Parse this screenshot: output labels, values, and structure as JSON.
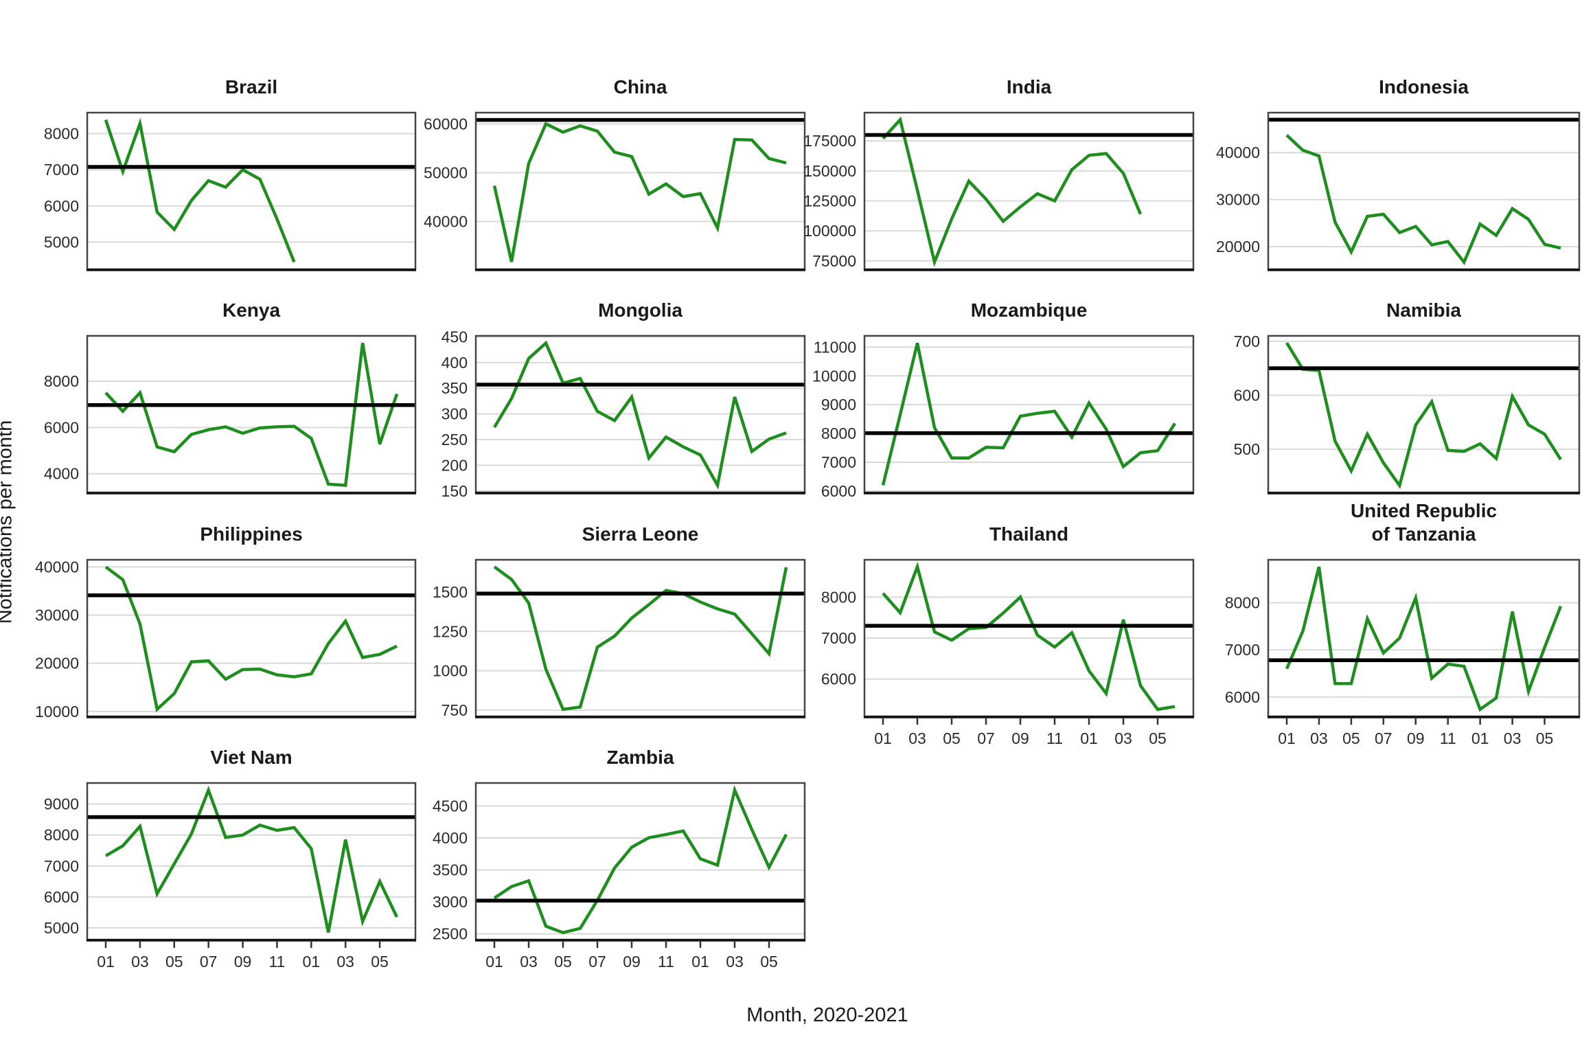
{
  "figure": {
    "ylabel": "Notifications per month",
    "xlabel": "Month, 2020-2021",
    "line_color": "#1e8e1e",
    "ref_line_color": "#000000",
    "gridline_color": "#d9d9d9",
    "border_color": "#454545",
    "axis_line_color": "#111111",
    "tick_text_color": "#2b2b2b"
  },
  "chart_data": {
    "type": "line",
    "x_months": [
      "01",
      "02",
      "03",
      "04",
      "05",
      "06",
      "07",
      "08",
      "09",
      "10",
      "11",
      "12",
      "01",
      "02",
      "03",
      "04",
      "05",
      "06"
    ],
    "x_tick_month_indices": [
      0,
      2,
      4,
      6,
      8,
      10,
      12,
      14,
      16
    ],
    "x_tick_labels": [
      "01",
      "03",
      "05",
      "07",
      "09",
      "11",
      "01",
      "03",
      "05"
    ],
    "note": "Green line = monthly TB notifications; black horizontal line = reference (pre-pandemic average) level",
    "panels": [
      {
        "title": "Brazil",
        "row": 0,
        "col": 0,
        "show_x_axis": false,
        "values": [
          8380,
          6950,
          8280,
          5830,
          5350,
          6150,
          6700,
          6520,
          7000,
          6740,
          5640,
          4450
        ],
        "ref": 7080,
        "yticks": [
          5000,
          6000,
          7000,
          8000
        ],
        "ymin": 4250,
        "ymax": 8580
      },
      {
        "title": "China",
        "row": 0,
        "col": 1,
        "show_x_axis": false,
        "values": [
          47300,
          31700,
          51900,
          60000,
          58300,
          59600,
          58500,
          54200,
          53300,
          45600,
          47700,
          45100,
          45700,
          38650,
          56800,
          56700,
          52900,
          52000
        ],
        "ref": 60800,
        "yticks": [
          40000,
          50000,
          60000
        ],
        "ymin": 30200,
        "ymax": 62300
      },
      {
        "title": "India",
        "row": 0,
        "col": 2,
        "show_x_axis": false,
        "values": [
          177000,
          192700,
          134000,
          74000,
          110000,
          141500,
          126500,
          108000,
          120000,
          131000,
          125000,
          151000,
          163000,
          164500,
          148000,
          114000
        ],
        "ref": 180000,
        "yticks": [
          75000,
          100000,
          125000,
          150000,
          175000
        ],
        "ymin": 68000,
        "ymax": 198600
      },
      {
        "title": "Indonesia",
        "row": 0,
        "col": 3,
        "show_x_axis": false,
        "values": [
          43700,
          40500,
          39300,
          25200,
          18900,
          26450,
          26900,
          23000,
          24300,
          20400,
          21100,
          16700,
          24800,
          22400,
          28100,
          25800,
          20500,
          19700
        ],
        "ref": 47000,
        "yticks": [
          20000,
          30000,
          40000
        ],
        "ymin": 15200,
        "ymax": 48500
      },
      {
        "title": "Kenya",
        "row": 1,
        "col": 0,
        "show_x_axis": false,
        "values": [
          7500,
          6700,
          7500,
          5160,
          4950,
          5700,
          5900,
          6030,
          5750,
          5980,
          6030,
          6050,
          5530,
          3550,
          3500,
          9650,
          5280,
          7450
        ],
        "ref": 6970,
        "yticks": [
          4000,
          6000,
          8000
        ],
        "ymin": 3190,
        "ymax": 9960
      },
      {
        "title": "Mongolia",
        "row": 1,
        "col": 1,
        "show_x_axis": false,
        "values": [
          274,
          330,
          408,
          438,
          360,
          369,
          305,
          287,
          333,
          214,
          255,
          236,
          220,
          161,
          333,
          227,
          251,
          263
        ],
        "ref": 357,
        "yticks": [
          150,
          200,
          250,
          300,
          350,
          400,
          450
        ],
        "ymin": 147,
        "ymax": 452
      },
      {
        "title": "Mozambique",
        "row": 1,
        "col": 2,
        "show_x_axis": false,
        "values": [
          6200,
          8650,
          11140,
          8200,
          7150,
          7150,
          7520,
          7500,
          8600,
          8700,
          8770,
          7870,
          9060,
          8150,
          6850,
          7330,
          7400,
          8350
        ],
        "ref": 8010,
        "yticks": [
          6000,
          7000,
          8000,
          9000,
          10000,
          11000
        ],
        "ymin": 5950,
        "ymax": 11390
      },
      {
        "title": "Namibia",
        "row": 1,
        "col": 3,
        "show_x_axis": false,
        "values": [
          697,
          648,
          646,
          515,
          460,
          528,
          475,
          433,
          545,
          588,
          498,
          496,
          510,
          483,
          598,
          545,
          528,
          481
        ],
        "ref": 650,
        "yticks": [
          500,
          600,
          700
        ],
        "ymin": 420,
        "ymax": 710
      },
      {
        "title": "Philippines",
        "row": 2,
        "col": 0,
        "show_x_axis": false,
        "values": [
          40000,
          37350,
          28150,
          10450,
          13700,
          20300,
          20500,
          16700,
          18700,
          18800,
          17600,
          17200,
          17800,
          24100,
          28750,
          21200,
          21850,
          23550
        ],
        "ref": 34100,
        "yticks": [
          10000,
          20000,
          30000,
          40000
        ],
        "ymin": 8970,
        "ymax": 41480
      },
      {
        "title": "Sierra Leone",
        "row": 2,
        "col": 1,
        "show_x_axis": false,
        "values": [
          1660,
          1580,
          1430,
          1010,
          755,
          770,
          1150,
          1220,
          1335,
          1420,
          1510,
          1490,
          1437,
          1393,
          1360,
          1235,
          1108,
          1657
        ],
        "ref": 1490,
        "yticks": [
          750,
          1000,
          1250,
          1500
        ],
        "ymin": 710,
        "ymax": 1705
      },
      {
        "title": "Thailand",
        "row": 2,
        "col": 2,
        "show_x_axis": true,
        "values": [
          8090,
          7620,
          8740,
          7150,
          6950,
          7230,
          7260,
          7610,
          8000,
          7070,
          6780,
          7130,
          6200,
          5650,
          7450,
          5840,
          5260,
          5330
        ],
        "ref": 7300,
        "yticks": [
          6000,
          7000,
          8000
        ],
        "ymin": 5090,
        "ymax": 8910
      },
      {
        "title": "United Republic\nof Tanzania",
        "row": 2,
        "col": 3,
        "show_x_axis": true,
        "values": [
          6600,
          7400,
          8760,
          6285,
          6285,
          7660,
          6935,
          7250,
          8100,
          6400,
          6700,
          6650,
          5740,
          5980,
          7810,
          6120,
          7050,
          7925
        ],
        "ref": 6780,
        "yticks": [
          6000,
          7000,
          8000
        ],
        "ymin": 5590,
        "ymax": 8910
      },
      {
        "title": "Viet Nam",
        "row": 3,
        "col": 0,
        "show_x_axis": true,
        "values": [
          7330,
          7650,
          8280,
          6100,
          7070,
          8030,
          9450,
          7920,
          8000,
          8320,
          8150,
          8240,
          7560,
          4850,
          7850,
          5210,
          6500,
          5350
        ],
        "ref": 8580,
        "yticks": [
          5000,
          6000,
          7000,
          8000,
          9000
        ],
        "ymin": 4620,
        "ymax": 9680
      },
      {
        "title": "Zambia",
        "row": 3,
        "col": 1,
        "show_x_axis": true,
        "values": [
          3060,
          3240,
          3330,
          2620,
          2520,
          2585,
          3025,
          3530,
          3855,
          4005,
          4055,
          4110,
          3675,
          3575,
          4750,
          4130,
          3540,
          4055
        ],
        "ref": 3020,
        "yticks": [
          2500,
          3000,
          3500,
          4000,
          4500
        ],
        "ymin": 2410,
        "ymax": 4860
      }
    ]
  }
}
